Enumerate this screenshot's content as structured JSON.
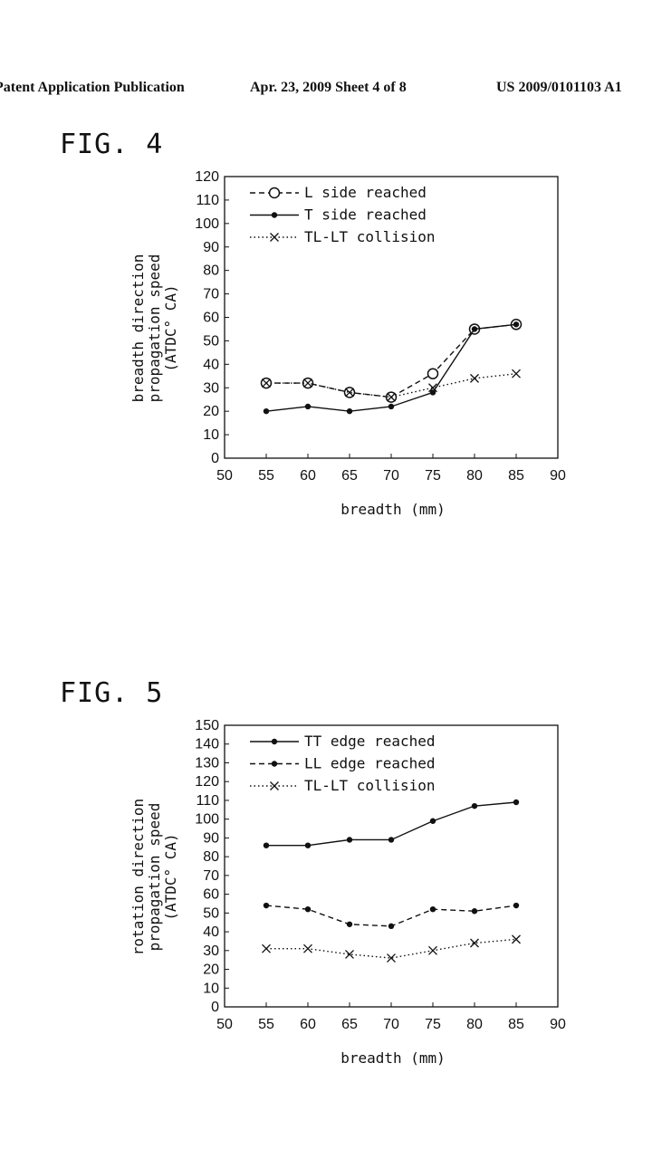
{
  "header": {
    "left": "Patent Application Publication",
    "middle": "Apr. 23, 2009  Sheet 4 of 8",
    "right": "US 2009/0101103 A1"
  },
  "colors": {
    "ink": "#111111",
    "background": "#ffffff"
  },
  "chart_data": [
    {
      "figure_label": "FIG. 4",
      "type": "line",
      "xlabel": "breadth (mm)",
      "ylabel": [
        "breadth direction",
        "propagation speed",
        "(ATDC° CA)"
      ],
      "x": [
        55,
        60,
        65,
        70,
        75,
        80,
        85
      ],
      "xlim": [
        50,
        90
      ],
      "xticks": [
        50,
        55,
        60,
        65,
        70,
        75,
        80,
        85,
        90
      ],
      "ylim": [
        0,
        120
      ],
      "yticks": [
        0,
        10,
        20,
        30,
        40,
        50,
        60,
        70,
        80,
        90,
        100,
        110,
        120
      ],
      "grid": false,
      "legend_position": "top-left",
      "series": [
        {
          "name": "L side reached",
          "line": "dashed",
          "marker": "open-circle",
          "values": [
            32,
            32,
            28,
            26,
            36,
            55,
            57
          ]
        },
        {
          "name": "T side reached",
          "line": "solid",
          "marker": "filled-dot",
          "values": [
            20,
            22,
            20,
            22,
            28,
            55,
            57
          ]
        },
        {
          "name": "TL-LT collision",
          "line": "dotted",
          "marker": "cross",
          "values": [
            32,
            32,
            28,
            26,
            30,
            34,
            36
          ]
        }
      ]
    },
    {
      "figure_label": "FIG. 5",
      "type": "line",
      "xlabel": "breadth (mm)",
      "ylabel": [
        "rotation direction",
        "propagation speed",
        "(ATDC° CA)"
      ],
      "x": [
        55,
        60,
        65,
        70,
        75,
        80,
        85
      ],
      "xlim": [
        50,
        90
      ],
      "xticks": [
        50,
        55,
        60,
        65,
        70,
        75,
        80,
        85,
        90
      ],
      "ylim": [
        0,
        150
      ],
      "yticks": [
        0,
        10,
        20,
        30,
        40,
        50,
        60,
        70,
        80,
        90,
        100,
        110,
        120,
        130,
        140,
        150
      ],
      "grid": false,
      "legend_position": "top-left",
      "series": [
        {
          "name": "TT edge reached",
          "line": "solid",
          "marker": "filled-dot",
          "values": [
            86,
            86,
            89,
            89,
            99,
            107,
            109
          ]
        },
        {
          "name": "LL edge reached",
          "line": "dashed",
          "marker": "filled-dot",
          "values": [
            54,
            52,
            44,
            43,
            52,
            51,
            54
          ]
        },
        {
          "name": "TL-LT collision",
          "line": "dotted",
          "marker": "cross",
          "values": [
            31,
            31,
            28,
            26,
            30,
            34,
            36
          ]
        }
      ]
    }
  ]
}
